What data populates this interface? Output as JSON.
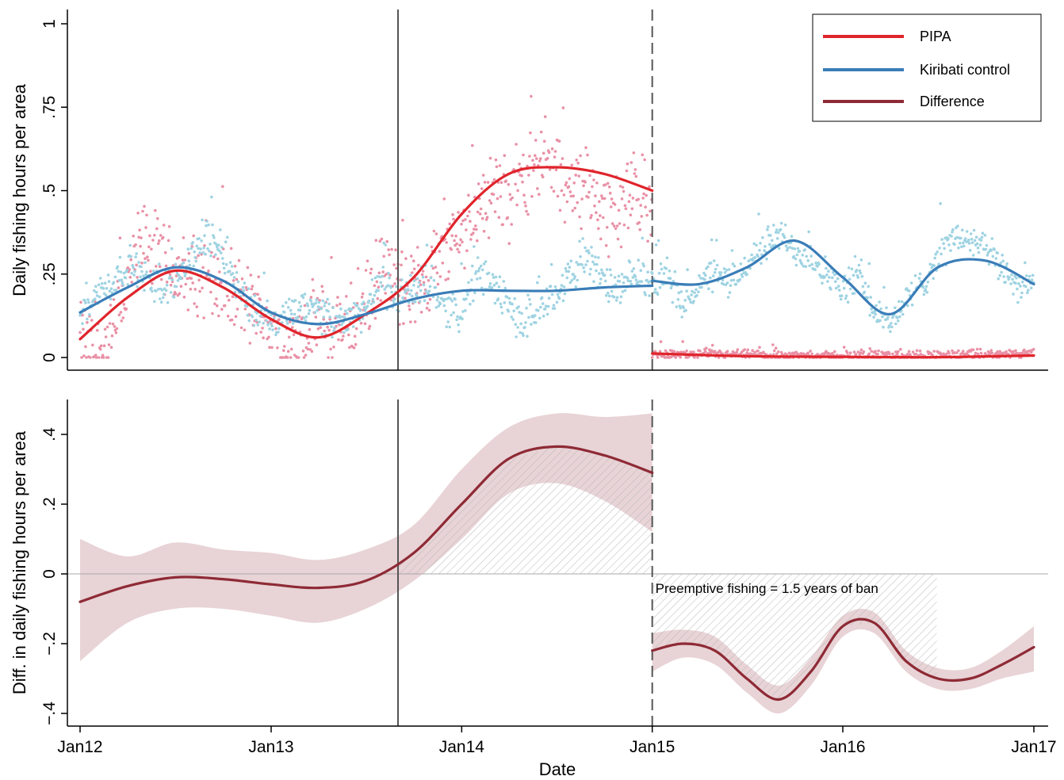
{
  "chart_data": [
    {
      "type": "line",
      "x_axis_type": "date",
      "xlim": [
        "2012-01-01",
        "2017-01-01"
      ],
      "ylim": [
        -0.04,
        1.0
      ],
      "ylabel": "Daily fishing hours per area",
      "y_ticks": [
        0,
        0.25,
        0.5,
        0.75,
        1
      ],
      "y_tick_labels": [
        "0",
        ".25",
        ".5",
        ".75",
        "1"
      ],
      "grid": false,
      "legend_position": "top-right",
      "legend": [
        {
          "label": "PIPA",
          "color": "#e0242b"
        },
        {
          "label": "Kiribati control",
          "color": "#3a7db8"
        },
        {
          "label": "Difference",
          "color": "#8e2a35"
        }
      ],
      "colors": {
        "pipa_line": "#e0242b",
        "kiribati_line": "#3a7db8",
        "pipa_scatter": "#e991a6",
        "kiribati_scatter": "#9fd3e2",
        "vline": "#555555"
      },
      "vertical_lines": [
        {
          "date": "2013-09-01",
          "style": "solid"
        },
        {
          "date": "2015-01-01",
          "style": "dashed"
        }
      ],
      "series": [
        {
          "name": "PIPA",
          "kind": "smooth",
          "x": [
            "2012-01-01",
            "2012-04-01",
            "2012-07-01",
            "2012-10-01",
            "2013-01-01",
            "2013-04-01",
            "2013-07-01",
            "2013-10-01",
            "2014-01-01",
            "2014-04-01",
            "2014-07-01",
            "2014-10-01",
            "2015-01-01"
          ],
          "y": [
            0.055,
            0.18,
            0.26,
            0.21,
            0.115,
            0.06,
            0.13,
            0.24,
            0.43,
            0.55,
            0.57,
            0.55,
            0.5
          ]
        },
        {
          "name": "PIPA",
          "kind": "smooth",
          "x": [
            "2015-01-01",
            "2015-07-01",
            "2016-01-01",
            "2016-07-01",
            "2017-01-01"
          ],
          "y": [
            0.012,
            0.004,
            0.002,
            0.001,
            0.006
          ]
        },
        {
          "name": "Kiribati control",
          "kind": "smooth",
          "x": [
            "2012-01-01",
            "2012-04-01",
            "2012-07-01",
            "2012-10-01",
            "2013-01-01",
            "2013-04-01",
            "2013-07-01",
            "2013-10-01",
            "2014-01-01",
            "2014-04-01",
            "2014-07-01",
            "2014-10-01",
            "2015-01-01"
          ],
          "y": [
            0.135,
            0.21,
            0.27,
            0.23,
            0.135,
            0.1,
            0.13,
            0.175,
            0.2,
            0.2,
            0.2,
            0.21,
            0.215
          ]
        },
        {
          "name": "Kiribati control",
          "kind": "smooth",
          "x": [
            "2015-01-01",
            "2015-04-01",
            "2015-07-01",
            "2015-10-01",
            "2016-01-01",
            "2016-04-01",
            "2016-07-01",
            "2016-10-01",
            "2017-01-01"
          ],
          "y": [
            0.23,
            0.22,
            0.27,
            0.35,
            0.24,
            0.13,
            0.27,
            0.29,
            0.22
          ]
        }
      ],
      "scatter_series": [
        {
          "name": "PIPA daily",
          "color_key": "pipa_scatter",
          "anchors_x": [
            "2012-01-01",
            "2012-02-01",
            "2012-03-01",
            "2012-04-01",
            "2012-05-01",
            "2012-06-01",
            "2012-07-01",
            "2012-08-01",
            "2012-09-01",
            "2012-10-01",
            "2012-11-01",
            "2012-12-01",
            "2013-01-01",
            "2013-02-01",
            "2013-03-01",
            "2013-04-01",
            "2013-05-01",
            "2013-06-01",
            "2013-07-01",
            "2013-08-01",
            "2013-09-01",
            "2013-10-01",
            "2013-11-01",
            "2013-12-01",
            "2014-01-01",
            "2014-02-01",
            "2014-03-01",
            "2014-04-01",
            "2014-05-01",
            "2014-06-01",
            "2014-07-01",
            "2014-08-01",
            "2014-09-01",
            "2014-10-01",
            "2014-11-01",
            "2014-12-01",
            "2015-01-01"
          ],
          "anchors_y": [
            0.05,
            0.02,
            0.05,
            0.22,
            0.35,
            0.3,
            0.25,
            0.24,
            0.26,
            0.2,
            0.18,
            0.14,
            0.1,
            0.02,
            0.05,
            0.12,
            0.08,
            0.1,
            0.16,
            0.25,
            0.22,
            0.2,
            0.26,
            0.3,
            0.38,
            0.45,
            0.5,
            0.48,
            0.55,
            0.6,
            0.55,
            0.5,
            0.5,
            0.45,
            0.42,
            0.5,
            0.45
          ],
          "spread": 0.1,
          "min": 0.0,
          "max": 0.98
        },
        {
          "name": "PIPA daily",
          "color_key": "pipa_scatter",
          "anchors_x": [
            "2015-01-01",
            "2016-01-01",
            "2017-01-01"
          ],
          "anchors_y": [
            0.01,
            0.005,
            0.01
          ],
          "spread": 0.012,
          "min": 0.0,
          "max": 0.08
        },
        {
          "name": "Kiribati daily",
          "color_key": "kiribati_scatter",
          "anchors_x": [
            "2012-01-01",
            "2012-02-01",
            "2012-03-01",
            "2012-04-01",
            "2012-05-01",
            "2012-06-01",
            "2012-07-01",
            "2012-08-01",
            "2012-09-01",
            "2012-10-01",
            "2012-11-01",
            "2012-12-01",
            "2013-01-01",
            "2013-02-01",
            "2013-03-01",
            "2013-04-01",
            "2013-05-01",
            "2013-06-01",
            "2013-07-01",
            "2013-08-01",
            "2013-09-01",
            "2013-10-01",
            "2013-11-01",
            "2013-12-01",
            "2014-01-01",
            "2014-02-01",
            "2014-03-01",
            "2014-04-01",
            "2014-05-01",
            "2014-06-01",
            "2014-07-01",
            "2014-08-01",
            "2014-09-01",
            "2014-10-01",
            "2014-11-01",
            "2014-12-01",
            "2015-01-01"
          ],
          "anchors_y": [
            0.15,
            0.19,
            0.22,
            0.28,
            0.24,
            0.21,
            0.23,
            0.3,
            0.37,
            0.32,
            0.2,
            0.14,
            0.1,
            0.12,
            0.15,
            0.14,
            0.1,
            0.12,
            0.15,
            0.22,
            0.18,
            0.2,
            0.22,
            0.15,
            0.14,
            0.25,
            0.22,
            0.15,
            0.1,
            0.15,
            0.2,
            0.25,
            0.3,
            0.22,
            0.2,
            0.25,
            0.22
          ],
          "spread": 0.045,
          "min": 0.0,
          "max": 0.55
        },
        {
          "name": "Kiribati daily",
          "color_key": "kiribati_scatter",
          "anchors_x": [
            "2015-01-01",
            "2015-02-01",
            "2015-03-01",
            "2015-04-01",
            "2015-05-01",
            "2015-06-01",
            "2015-07-01",
            "2015-08-01",
            "2015-09-01",
            "2015-10-01",
            "2015-11-01",
            "2015-12-01",
            "2016-01-01",
            "2016-02-01",
            "2016-03-01",
            "2016-04-01",
            "2016-05-01",
            "2016-06-01",
            "2016-07-01",
            "2016-08-01",
            "2016-09-01",
            "2016-10-01",
            "2016-11-01",
            "2016-12-01",
            "2017-01-01"
          ],
          "anchors_y": [
            0.22,
            0.25,
            0.15,
            0.22,
            0.25,
            0.22,
            0.28,
            0.33,
            0.37,
            0.32,
            0.3,
            0.25,
            0.2,
            0.25,
            0.14,
            0.1,
            0.17,
            0.22,
            0.3,
            0.36,
            0.35,
            0.32,
            0.27,
            0.22,
            0.22
          ],
          "spread": 0.04,
          "min": 0.0,
          "max": 0.5
        }
      ]
    },
    {
      "type": "line",
      "x_axis_type": "date",
      "xlim": [
        "2012-01-01",
        "2017-01-01"
      ],
      "x_ticks": [
        "2012-01-01",
        "2013-01-01",
        "2014-01-01",
        "2015-01-01",
        "2016-01-01",
        "2017-01-01"
      ],
      "x_tick_labels": [
        "Jan12",
        "Jan13",
        "Jan14",
        "Jan15",
        "Jan16",
        "Jan17"
      ],
      "xlabel": "Date",
      "ylim": [
        -0.44,
        0.51
      ],
      "ylabel": "Diff. in daily fishing hours per area",
      "y_ticks": [
        -0.4,
        -0.2,
        0,
        0.2,
        0.4
      ],
      "y_tick_labels": [
        "−.4",
        "−.2",
        "0",
        ".2",
        ".4"
      ],
      "grid": false,
      "zero_line": true,
      "colors": {
        "line": "#8e2a35",
        "band": "#e8d3d6",
        "hatch": "#b8b8b8",
        "vline": "#555555",
        "zero_line": "#aaaaaa"
      },
      "vertical_lines": [
        {
          "date": "2013-09-01",
          "style": "solid"
        },
        {
          "date": "2015-01-01",
          "style": "dashed"
        }
      ],
      "series": [
        {
          "name": "Difference",
          "kind": "smooth",
          "x": [
            "2012-01-01",
            "2012-04-01",
            "2012-07-01",
            "2012-10-01",
            "2013-01-01",
            "2013-04-01",
            "2013-07-01",
            "2013-10-01",
            "2014-01-01",
            "2014-04-01",
            "2014-07-01",
            "2014-10-01",
            "2015-01-01"
          ],
          "y": [
            -0.08,
            -0.035,
            -0.01,
            -0.015,
            -0.03,
            -0.04,
            -0.02,
            0.06,
            0.2,
            0.33,
            0.365,
            0.34,
            0.29
          ],
          "ci_low": [
            -0.25,
            -0.14,
            -0.1,
            -0.1,
            -0.12,
            -0.14,
            -0.1,
            -0.02,
            0.1,
            0.23,
            0.26,
            0.21,
            0.12
          ],
          "ci_high": [
            0.1,
            0.05,
            0.09,
            0.07,
            0.06,
            0.04,
            0.07,
            0.14,
            0.3,
            0.42,
            0.46,
            0.45,
            0.46
          ]
        },
        {
          "name": "Difference",
          "kind": "smooth",
          "x": [
            "2015-01-01",
            "2015-03-01",
            "2015-05-01",
            "2015-07-01",
            "2015-09-01",
            "2015-11-01",
            "2016-01-01",
            "2016-03-01",
            "2016-05-01",
            "2016-07-01",
            "2016-09-01",
            "2016-11-01",
            "2017-01-01"
          ],
          "y": [
            -0.22,
            -0.2,
            -0.22,
            -0.3,
            -0.36,
            -0.28,
            -0.15,
            -0.14,
            -0.25,
            -0.3,
            -0.3,
            -0.26,
            -0.21
          ],
          "ci_low": [
            -0.28,
            -0.24,
            -0.26,
            -0.34,
            -0.4,
            -0.32,
            -0.18,
            -0.17,
            -0.28,
            -0.33,
            -0.33,
            -0.3,
            -0.28
          ],
          "ci_high": [
            -0.17,
            -0.16,
            -0.18,
            -0.26,
            -0.32,
            -0.24,
            -0.12,
            -0.11,
            -0.22,
            -0.27,
            -0.27,
            -0.22,
            -0.15
          ]
        }
      ],
      "hatched_regions": [
        {
          "label": "pre-ban excess",
          "x_start": "2013-09-01",
          "x_end": "2015-01-01",
          "y_top_from": "Difference",
          "y_bottom": 0
        },
        {
          "label": "ban period",
          "x_start": "2015-01-01",
          "x_end": "2016-07-01",
          "y_top": 0,
          "y_bottom_from": "Difference"
        }
      ],
      "annotations": [
        {
          "text": "Preemptive fishing = 1.5 years of ban",
          "x": "2015-01-01",
          "y": -0.05
        }
      ]
    }
  ]
}
